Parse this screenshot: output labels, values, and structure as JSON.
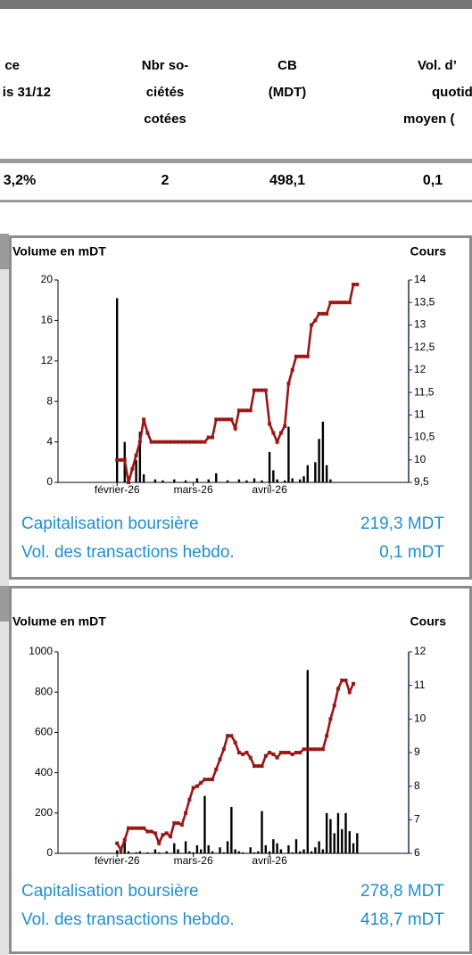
{
  "table": {
    "headers": [
      [
        "ce",
        "is 31/12"
      ],
      [
        "Nbr so-",
        "ciétés",
        "cotées"
      ],
      [
        "CB",
        "(MDT)"
      ],
      [
        "Vol. d’",
        "quotid",
        "moyen ("
      ]
    ],
    "row": [
      "3,2%",
      "2",
      "498,1",
      "0,1"
    ]
  },
  "chart_data": [
    {
      "type": "bar-line",
      "y_label": "Volume en mDT",
      "y2_label": "Cours",
      "categories": [
        null,
        null,
        null,
        null,
        null,
        null,
        null,
        null,
        null,
        null,
        null,
        null,
        null,
        null,
        null,
        "février-26",
        null,
        null,
        null,
        null,
        null,
        null,
        null,
        null,
        null,
        null,
        null,
        null,
        null,
        null,
        null,
        null,
        null,
        null,
        null,
        "mars-26",
        null,
        null,
        null,
        null,
        null,
        null,
        null,
        null,
        null,
        null,
        null,
        null,
        null,
        null,
        null,
        null,
        null,
        null,
        null,
        "avril-26",
        null,
        null,
        null,
        null,
        null,
        null,
        null,
        null,
        null,
        null,
        null,
        null,
        null,
        null,
        null,
        null,
        null,
        null,
        null,
        null,
        null,
        null,
        null,
        null,
        null,
        null,
        null,
        null,
        null,
        null,
        null,
        null,
        null,
        null,
        null,
        null
      ],
      "series": [
        {
          "type": "bar",
          "color": "#000000",
          "values": [
            0,
            0,
            0,
            0,
            0,
            0,
            0,
            0,
            0,
            0,
            0,
            0,
            0,
            0,
            0,
            18.2,
            0,
            4,
            0.6,
            0,
            2.2,
            5,
            0.8,
            0,
            0,
            0.3,
            0,
            0.2,
            0,
            0,
            0.3,
            0,
            0,
            0.2,
            0,
            0,
            0.4,
            0,
            0,
            0.3,
            0,
            0.9,
            0,
            0,
            0.2,
            0,
            0,
            0.3,
            0,
            0.2,
            0,
            0.4,
            0,
            0.2,
            0,
            3,
            1.2,
            0.3,
            0,
            0.2,
            5.5,
            0.4,
            0,
            0.3,
            0.6,
            1.7,
            0,
            2,
            4.3,
            6,
            1.7,
            0.3,
            0,
            0,
            0,
            0,
            0,
            0,
            0,
            0,
            0,
            0,
            0,
            0,
            0,
            0,
            0,
            0,
            0,
            0,
            0,
            0
          ]
        },
        {
          "type": "line",
          "axis": "y2",
          "color": "#9b1515",
          "values": [
            null,
            null,
            null,
            null,
            null,
            null,
            null,
            null,
            null,
            null,
            null,
            null,
            null,
            null,
            null,
            10,
            10,
            10,
            9.5,
            9.8,
            10.1,
            10.4,
            10.9,
            10.6,
            10.4,
            10.4,
            10.4,
            10.4,
            10.4,
            10.4,
            10.4,
            10.4,
            10.4,
            10.4,
            10.4,
            10.4,
            10.4,
            10.4,
            10.4,
            10.5,
            10.5,
            10.9,
            10.9,
            10.9,
            10.9,
            10.9,
            10.7,
            11.1,
            11.1,
            11.1,
            11.1,
            11.55,
            11.55,
            11.55,
            11.55,
            10.8,
            10.6,
            10.4,
            10.6,
            10.75,
            11.7,
            12,
            12.3,
            12.3,
            12.3,
            12.3,
            13,
            13.1,
            13.25,
            13.25,
            13.25,
            13.5,
            13.5,
            13.5,
            13.5,
            13.5,
            13.5,
            13.9,
            13.9,
            null,
            null,
            null,
            null,
            null,
            null,
            null,
            null,
            null,
            null,
            null,
            null,
            null
          ]
        }
      ],
      "ylim": [
        0,
        20
      ],
      "yticks": [
        0,
        4,
        8,
        12,
        16,
        20
      ],
      "y2lim": [
        9.5,
        14
      ],
      "y2ticks": [
        {
          "value": 9.5,
          "label": "9,5"
        },
        10,
        {
          "value": 10.5,
          "label": "10,5"
        },
        11,
        {
          "value": 11.5,
          "label": "11,5"
        },
        12,
        {
          "value": 12.5,
          "label": "12,5"
        },
        13,
        {
          "value": 13.5,
          "label": "13,5"
        },
        14
      ],
      "notes": [
        {
          "label": "Capitalisation boursière",
          "value": "219,3 MDT"
        },
        {
          "label": "Vol. des transactions hebdo.",
          "value": "0,1 mDT"
        }
      ]
    },
    {
      "type": "bar-line",
      "y_label": "Volume en mDT",
      "y2_label": "Cours",
      "categories": [
        null,
        null,
        null,
        null,
        null,
        null,
        null,
        null,
        null,
        null,
        null,
        null,
        null,
        null,
        null,
        "février-26",
        null,
        null,
        null,
        null,
        null,
        null,
        null,
        null,
        null,
        null,
        null,
        null,
        null,
        null,
        null,
        null,
        null,
        null,
        null,
        "mars-26",
        null,
        null,
        null,
        null,
        null,
        null,
        null,
        null,
        null,
        null,
        null,
        null,
        null,
        null,
        null,
        null,
        null,
        null,
        null,
        "avril-26",
        null,
        null,
        null,
        null,
        null,
        null,
        null,
        null,
        null,
        null,
        null,
        null,
        null,
        null,
        null,
        null,
        null,
        null,
        null,
        null,
        null,
        null,
        null,
        null,
        null,
        null,
        null,
        null,
        null,
        null,
        null,
        null,
        null,
        null,
        null,
        null
      ],
      "series": [
        {
          "type": "bar",
          "color": "#000000",
          "values": [
            0,
            0,
            0,
            0,
            0,
            0,
            0,
            0,
            0,
            0,
            0,
            0,
            0,
            0,
            0,
            15,
            30,
            60,
            10,
            0,
            5,
            10,
            0,
            5,
            0,
            20,
            5,
            0,
            10,
            0,
            50,
            20,
            0,
            60,
            10,
            5,
            40,
            20,
            285,
            40,
            10,
            0,
            30,
            5,
            60,
            230,
            20,
            10,
            5,
            0,
            30,
            5,
            10,
            210,
            40,
            10,
            70,
            50,
            20,
            0,
            40,
            5,
            70,
            10,
            20,
            910,
            10,
            30,
            60,
            20,
            200,
            170,
            100,
            200,
            120,
            200,
            110,
            50,
            100,
            0,
            0,
            0,
            0,
            0,
            0,
            0,
            0,
            0,
            0,
            0,
            0,
            0
          ]
        },
        {
          "type": "line",
          "axis": "y2",
          "color": "#9b1515",
          "values": [
            null,
            null,
            null,
            null,
            null,
            null,
            null,
            null,
            null,
            null,
            null,
            null,
            null,
            null,
            null,
            6.3,
            6.1,
            6.4,
            6.75,
            6.75,
            6.75,
            6.75,
            6.75,
            6.65,
            6.65,
            6.6,
            6.3,
            6.55,
            6.6,
            6.5,
            6.9,
            6.9,
            6.85,
            7.2,
            7.6,
            7.95,
            8,
            8.1,
            8.2,
            8.2,
            8.2,
            8.5,
            8.8,
            9.1,
            9.5,
            9.5,
            9.3,
            9,
            8.95,
            9,
            8.85,
            8.6,
            8.6,
            8.6,
            8.9,
            9,
            8.95,
            8.85,
            9,
            9,
            9,
            8.95,
            9,
            9,
            9.1,
            9.1,
            9.1,
            9.1,
            9.1,
            9.1,
            9.5,
            10,
            10.4,
            10.9,
            11.15,
            11.15,
            10.8,
            11.05,
            null,
            null,
            null,
            null,
            null,
            null,
            null,
            null,
            null,
            null,
            null,
            null,
            null,
            null
          ]
        }
      ],
      "ylim": [
        0,
        1000
      ],
      "yticks": [
        0,
        200,
        400,
        600,
        800,
        1000
      ],
      "y2lim": [
        6,
        12
      ],
      "y2ticks": [
        6,
        7,
        8,
        9,
        10,
        11,
        12
      ],
      "notes": [
        {
          "label": "Capitalisation boursière",
          "value": "278,8 MDT"
        },
        {
          "label": "Vol. des transactions hebdo.",
          "value": "418,7 mDT"
        }
      ]
    }
  ]
}
